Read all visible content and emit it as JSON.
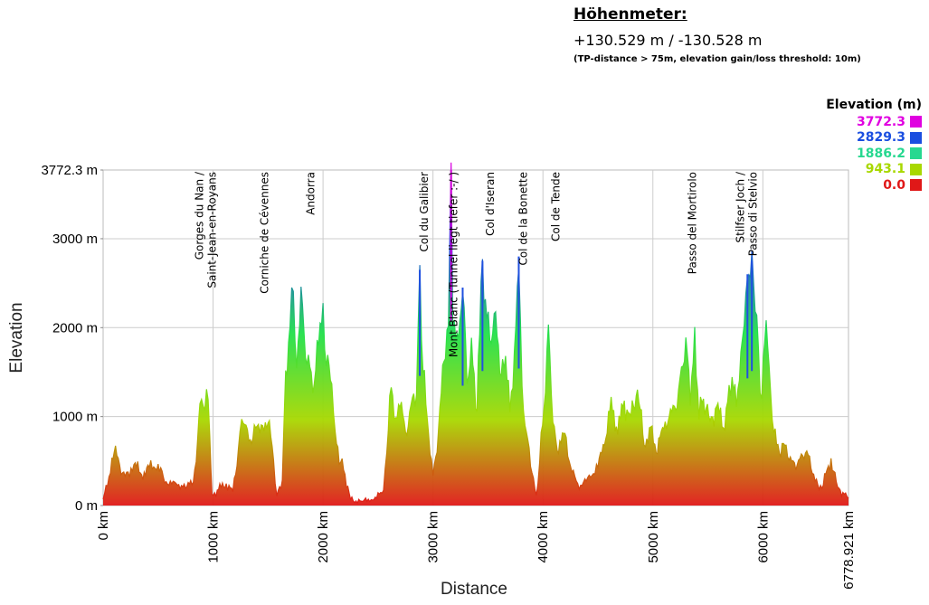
{
  "header": {
    "title": "Höhenmeter:",
    "value": "+130.529 m / -130.528 m",
    "note": "(TP-distance > 75m, elevation gain/loss threshold: 10m)"
  },
  "legend": {
    "title": "Elevation (m)",
    "items": [
      {
        "label": "3772.3",
        "color": "#e000e0"
      },
      {
        "label": "2829.3",
        "color": "#1a4ee0"
      },
      {
        "label": "1886.2",
        "color": "#27d890"
      },
      {
        "label": "943.1",
        "color": "#a8d800"
      },
      {
        "label": "0.0",
        "color": "#e01818"
      }
    ]
  },
  "chart_data": {
    "type": "area",
    "title": "",
    "xlabel": "Distance",
    "ylabel": "Elevation",
    "xlim": [
      0,
      6778.921
    ],
    "ylim": [
      0,
      3772.3
    ],
    "x_ticks": [
      {
        "value": 0,
        "label": "0 km"
      },
      {
        "value": 1000,
        "label": "1000 km"
      },
      {
        "value": 2000,
        "label": "2000 km"
      },
      {
        "value": 3000,
        "label": "3000 km"
      },
      {
        "value": 4000,
        "label": "4000 km"
      },
      {
        "value": 5000,
        "label": "5000 km"
      },
      {
        "value": 6000,
        "label": "6000 km"
      },
      {
        "value": 6778.921,
        "label": "6778.921 km"
      }
    ],
    "y_ticks": [
      {
        "value": 0,
        "label": "0 m"
      },
      {
        "value": 1000,
        "label": "1000 m"
      },
      {
        "value": 2000,
        "label": "2000 m"
      },
      {
        "value": 3000,
        "label": "3000 m"
      },
      {
        "value": 3772.3,
        "label": "3772.3 m"
      }
    ],
    "grid": true,
    "color_scale": [
      {
        "value": 0,
        "color": "#e01818"
      },
      {
        "value": 943.1,
        "color": "#a8d800"
      },
      {
        "value": 1886.2,
        "color": "#22e04a"
      },
      {
        "value": 2829.3,
        "color": "#1a4ee0"
      },
      {
        "value": 3772.3,
        "color": "#e000e0"
      }
    ],
    "annotations": [
      {
        "x": 950,
        "lines": [
          "Gorges du Nan /",
          "Saint-Jean-en-Royans"
        ]
      },
      {
        "x": 1430,
        "lines": [
          "Corniche de Cévennes"
        ]
      },
      {
        "x": 1850,
        "lines": [
          "Andorra"
        ]
      },
      {
        "x": 2880,
        "lines": [
          "Col du Galibier"
        ]
      },
      {
        "x": 3150,
        "lines": [
          "Mont Blanc (Tunnel liegt tiefer :-/ )"
        ]
      },
      {
        "x": 3480,
        "lines": [
          "Col d'Iseran"
        ]
      },
      {
        "x": 3780,
        "lines": [
          "Col de la Bonette"
        ]
      },
      {
        "x": 4080,
        "lines": [
          "Col de Tende"
        ]
      },
      {
        "x": 5320,
        "lines": [
          "Passo del Mortirolo"
        ]
      },
      {
        "x": 5870,
        "lines": [
          "Stilfser Joch /",
          "Passo di Stelvio"
        ]
      }
    ],
    "profile": [
      {
        "x": 0,
        "y": 70
      },
      {
        "x": 40,
        "y": 250
      },
      {
        "x": 80,
        "y": 480
      },
      {
        "x": 100,
        "y": 640
      },
      {
        "x": 150,
        "y": 450
      },
      {
        "x": 200,
        "y": 320
      },
      {
        "x": 280,
        "y": 470
      },
      {
        "x": 350,
        "y": 350
      },
      {
        "x": 420,
        "y": 420
      },
      {
        "x": 500,
        "y": 460
      },
      {
        "x": 560,
        "y": 280
      },
      {
        "x": 650,
        "y": 230
      },
      {
        "x": 750,
        "y": 220
      },
      {
        "x": 820,
        "y": 260
      },
      {
        "x": 860,
        "y": 700
      },
      {
        "x": 880,
        "y": 1250
      },
      {
        "x": 910,
        "y": 1050
      },
      {
        "x": 940,
        "y": 1330
      },
      {
        "x": 970,
        "y": 800
      },
      {
        "x": 990,
        "y": 120
      },
      {
        "x": 1050,
        "y": 180
      },
      {
        "x": 1120,
        "y": 250
      },
      {
        "x": 1180,
        "y": 160
      },
      {
        "x": 1230,
        "y": 600
      },
      {
        "x": 1260,
        "y": 1050
      },
      {
        "x": 1300,
        "y": 850
      },
      {
        "x": 1350,
        "y": 700
      },
      {
        "x": 1400,
        "y": 950
      },
      {
        "x": 1450,
        "y": 820
      },
      {
        "x": 1500,
        "y": 1000
      },
      {
        "x": 1550,
        "y": 500
      },
      {
        "x": 1580,
        "y": 100
      },
      {
        "x": 1630,
        "y": 300
      },
      {
        "x": 1660,
        "y": 1500
      },
      {
        "x": 1700,
        "y": 2000
      },
      {
        "x": 1730,
        "y": 2400
      },
      {
        "x": 1760,
        "y": 1600
      },
      {
        "x": 1800,
        "y": 2350
      },
      {
        "x": 1840,
        "y": 1750
      },
      {
        "x": 1880,
        "y": 1550
      },
      {
        "x": 1920,
        "y": 1300
      },
      {
        "x": 1960,
        "y": 1950
      },
      {
        "x": 2000,
        "y": 2150
      },
      {
        "x": 2030,
        "y": 1600
      },
      {
        "x": 2080,
        "y": 1400
      },
      {
        "x": 2110,
        "y": 800
      },
      {
        "x": 2160,
        "y": 500
      },
      {
        "x": 2200,
        "y": 350
      },
      {
        "x": 2250,
        "y": 70
      },
      {
        "x": 2350,
        "y": 40
      },
      {
        "x": 2450,
        "y": 80
      },
      {
        "x": 2550,
        "y": 150
      },
      {
        "x": 2580,
        "y": 600
      },
      {
        "x": 2620,
        "y": 1400
      },
      {
        "x": 2660,
        "y": 900
      },
      {
        "x": 2700,
        "y": 1200
      },
      {
        "x": 2750,
        "y": 800
      },
      {
        "x": 2800,
        "y": 1100
      },
      {
        "x": 2850,
        "y": 1300
      },
      {
        "x": 2880,
        "y": 2650
      },
      {
        "x": 2910,
        "y": 1500
      },
      {
        "x": 2960,
        "y": 800
      },
      {
        "x": 3000,
        "y": 350
      },
      {
        "x": 3050,
        "y": 800
      },
      {
        "x": 3100,
        "y": 1700
      },
      {
        "x": 3140,
        "y": 2000
      },
      {
        "x": 3165,
        "y": 3772.3
      },
      {
        "x": 3180,
        "y": 2200
      },
      {
        "x": 3220,
        "y": 1800
      },
      {
        "x": 3270,
        "y": 2450
      },
      {
        "x": 3310,
        "y": 1400
      },
      {
        "x": 3350,
        "y": 1800
      },
      {
        "x": 3400,
        "y": 1100
      },
      {
        "x": 3450,
        "y": 2750
      },
      {
        "x": 3490,
        "y": 2100
      },
      {
        "x": 3530,
        "y": 1800
      },
      {
        "x": 3570,
        "y": 2250
      },
      {
        "x": 3620,
        "y": 1400
      },
      {
        "x": 3660,
        "y": 1700
      },
      {
        "x": 3700,
        "y": 1100
      },
      {
        "x": 3740,
        "y": 1600
      },
      {
        "x": 3780,
        "y": 2800
      },
      {
        "x": 3810,
        "y": 1300
      },
      {
        "x": 3850,
        "y": 800
      },
      {
        "x": 3900,
        "y": 400
      },
      {
        "x": 3940,
        "y": 100
      },
      {
        "x": 3970,
        "y": 500
      },
      {
        "x": 4010,
        "y": 1100
      },
      {
        "x": 4050,
        "y": 2050
      },
      {
        "x": 4090,
        "y": 900
      },
      {
        "x": 4130,
        "y": 650
      },
      {
        "x": 4200,
        "y": 800
      },
      {
        "x": 4250,
        "y": 420
      },
      {
        "x": 4330,
        "y": 220
      },
      {
        "x": 4420,
        "y": 300
      },
      {
        "x": 4500,
        "y": 450
      },
      {
        "x": 4560,
        "y": 700
      },
      {
        "x": 4620,
        "y": 1150
      },
      {
        "x": 4680,
        "y": 850
      },
      {
        "x": 4740,
        "y": 1150
      },
      {
        "x": 4800,
        "y": 1000
      },
      {
        "x": 4860,
        "y": 1300
      },
      {
        "x": 4920,
        "y": 700
      },
      {
        "x": 4980,
        "y": 850
      },
      {
        "x": 5030,
        "y": 600
      },
      {
        "x": 5100,
        "y": 900
      },
      {
        "x": 5160,
        "y": 1000
      },
      {
        "x": 5220,
        "y": 1200
      },
      {
        "x": 5260,
        "y": 1500
      },
      {
        "x": 5300,
        "y": 1850
      },
      {
        "x": 5340,
        "y": 1200
      },
      {
        "x": 5380,
        "y": 1900
      },
      {
        "x": 5420,
        "y": 1000
      },
      {
        "x": 5460,
        "y": 1200
      },
      {
        "x": 5520,
        "y": 950
      },
      {
        "x": 5580,
        "y": 1100
      },
      {
        "x": 5640,
        "y": 900
      },
      {
        "x": 5680,
        "y": 1150
      },
      {
        "x": 5720,
        "y": 1400
      },
      {
        "x": 5760,
        "y": 1200
      },
      {
        "x": 5800,
        "y": 1600
      },
      {
        "x": 5830,
        "y": 2100
      },
      {
        "x": 5860,
        "y": 2600
      },
      {
        "x": 5900,
        "y": 2750
      },
      {
        "x": 5930,
        "y": 2300
      },
      {
        "x": 5960,
        "y": 1700
      },
      {
        "x": 5990,
        "y": 1200
      },
      {
        "x": 6030,
        "y": 2100
      },
      {
        "x": 6070,
        "y": 1300
      },
      {
        "x": 6100,
        "y": 800
      },
      {
        "x": 6150,
        "y": 600
      },
      {
        "x": 6200,
        "y": 700
      },
      {
        "x": 6250,
        "y": 500
      },
      {
        "x": 6300,
        "y": 450
      },
      {
        "x": 6350,
        "y": 550
      },
      {
        "x": 6400,
        "y": 600
      },
      {
        "x": 6450,
        "y": 400
      },
      {
        "x": 6500,
        "y": 200
      },
      {
        "x": 6550,
        "y": 250
      },
      {
        "x": 6620,
        "y": 530
      },
      {
        "x": 6680,
        "y": 200
      },
      {
        "x": 6740,
        "y": 130
      },
      {
        "x": 6778.921,
        "y": 80
      }
    ]
  }
}
